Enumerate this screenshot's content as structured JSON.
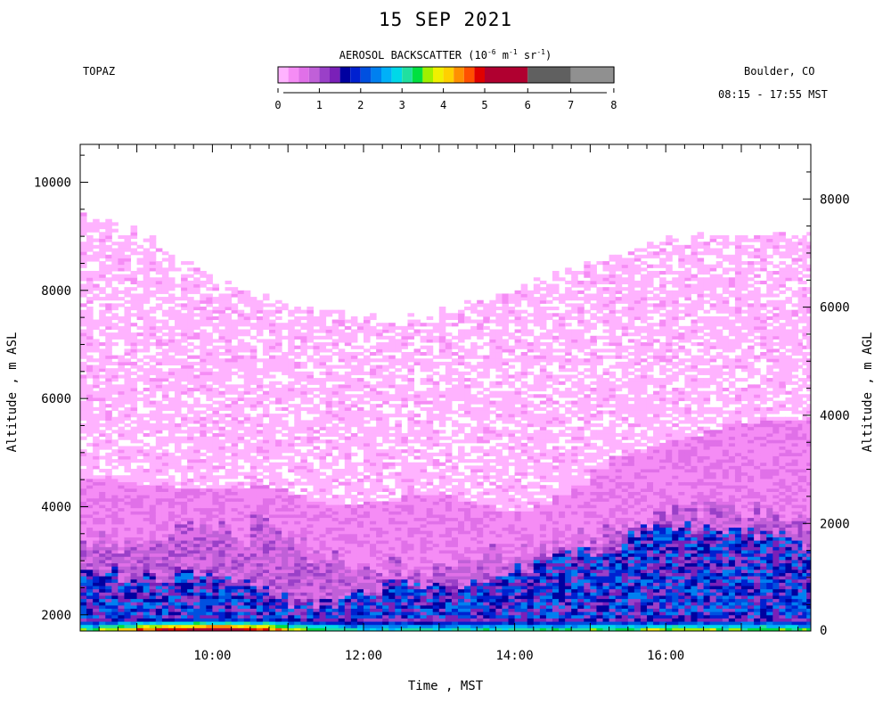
{
  "header": {
    "title": "15 SEP 2021",
    "instrument": "TOPAZ",
    "location": "Boulder, CO",
    "time_range": "08:15 - 17:55 MST"
  },
  "colorbar": {
    "title_prefix": "AEROSOL BACKSCATTER (10",
    "exp1": "-6",
    "mid1": " m",
    "exp2": "-1",
    "mid2": " sr",
    "exp3": "-1",
    "suffix": ")",
    "tick_labels": [
      "0",
      "1",
      "2",
      "3",
      "4",
      "5",
      "6",
      "7",
      "8"
    ],
    "levels": [
      0,
      0.25,
      0.5,
      0.75,
      1.0,
      1.25,
      1.5,
      1.75,
      2.0,
      2.25,
      2.5,
      2.75,
      3.0,
      3.25,
      3.5,
      3.75,
      4.0,
      4.25,
      4.5,
      4.75,
      5,
      6,
      7,
      8
    ],
    "colors": [
      "#ffffff",
      "#ffb3ff",
      "#f58cf5",
      "#e070e8",
      "#c060d8",
      "#9a40c8",
      "#7a20b8",
      "#0000a0",
      "#0020d0",
      "#0050e0",
      "#0080f0",
      "#00b0f8",
      "#00d8e8",
      "#20e0a0",
      "#00e040",
      "#a0f000",
      "#f0f000",
      "#ffd000",
      "#ff9000",
      "#ff5000",
      "#e00000",
      "#b00030",
      "#606060",
      "#909090",
      "#c0c0c0"
    ]
  },
  "chart_data": {
    "type": "heatmap",
    "title": "15 SEP 2021",
    "xlabel": "Time , MST",
    "ylabel": "Altitude , m ASL",
    "ylabel_right": "Altitude , m AGL",
    "x_range": [
      "08:15",
      "17:55"
    ],
    "xlim_hours": [
      8.25,
      17.92
    ],
    "x_tick_labels": [
      "10:00",
      "12:00",
      "14:00",
      "16:00"
    ],
    "x_tick_hours": [
      10,
      12,
      14,
      16
    ],
    "ylim": [
      1700,
      10700
    ],
    "y_tick_values": [
      2000,
      4000,
      6000,
      8000,
      10000
    ],
    "y_tick_labels": [
      "2000",
      "4000",
      "6000",
      "8000",
      "10000"
    ],
    "y_right_tick_values": [
      0,
      2000,
      4000,
      6000,
      8000
    ],
    "y_right_tick_labels": [
      "0",
      "2000",
      "4000",
      "6000",
      "8000"
    ],
    "surface_altitude_asl": 1690,
    "columns": {
      "time_hours": [
        8.25,
        8.5,
        8.75,
        9.0,
        9.25,
        9.5,
        9.75,
        10.0,
        10.25,
        10.5,
        10.75,
        11.0,
        11.25,
        11.5,
        11.75,
        12.0,
        12.25,
        12.5,
        12.75,
        13.0,
        13.25,
        13.5,
        13.75,
        14.0,
        14.25,
        14.5,
        14.75,
        15.0,
        15.25,
        15.5,
        15.75,
        16.0,
        16.25,
        16.5,
        16.75,
        17.0,
        17.25,
        17.5,
        17.75
      ],
      "data_top_m": [
        9400,
        9300,
        9100,
        8900,
        8700,
        8500,
        8300,
        8100,
        8000,
        7900,
        7800,
        7700,
        7600,
        7550,
        7500,
        7450,
        7450,
        7500,
        7500,
        7600,
        7700,
        7800,
        7900,
        8000,
        8150,
        8300,
        8400,
        8550,
        8700,
        8800,
        8850,
        8900,
        8950,
        9000,
        9000,
        9050,
        9050,
        9050,
        9050
      ],
      "faint_layer_top_m": [
        4500,
        4500,
        4450,
        4400,
        4350,
        4300,
        4300,
        4300,
        4300,
        4350,
        4300,
        4200,
        4100,
        4000,
        4000,
        4100,
        4100,
        4200,
        4200,
        4200,
        4100,
        4000,
        3900,
        3900,
        4000,
        4200,
        4400,
        4700,
        4900,
        5000,
        5100,
        5200,
        5300,
        5400,
        5500,
        5500,
        5600,
        5600,
        5600
      ],
      "boundary_layer_top_m": [
        3400,
        3400,
        3300,
        3400,
        3500,
        3500,
        3600,
        3600,
        3400,
        3700,
        3500,
        3300,
        3100,
        3000,
        2900,
        2900,
        2900,
        2800,
        2800,
        3000,
        3200,
        3100,
        3000,
        3100,
        3200,
        3300,
        3400,
        3500,
        3600,
        3700,
        3800,
        3900,
        3950,
        4000,
        4000,
        3900,
        3850,
        3800,
        3700
      ],
      "dense_layer_top_m": [
        2800,
        2800,
        2700,
        2700,
        2700,
        2800,
        2700,
        2600,
        2500,
        2400,
        2300,
        2200,
        2200,
        2200,
        2300,
        2400,
        2500,
        2500,
        2500,
        2500,
        2600,
        2600,
        2600,
        2800,
        3000,
        3200,
        3100,
        3000,
        3200,
        3500,
        3600,
        3600,
        3600,
        3600,
        3500,
        3500,
        3500,
        3400,
        3300
      ],
      "surface_peak_backscatter": [
        2.8,
        3.2,
        3.6,
        4.0,
        4.4,
        4.6,
        4.8,
        4.8,
        4.6,
        4.2,
        3.8,
        3.2,
        2.8,
        2.6,
        2.4,
        2.4,
        2.4,
        2.4,
        2.5,
        2.5,
        2.6,
        2.6,
        2.6,
        2.6,
        2.7,
        2.7,
        2.8,
        2.8,
        2.8,
        2.9,
        3.0,
        3.0,
        3.0,
        3.0,
        2.9,
        2.9,
        2.9,
        2.8,
        2.8
      ]
    }
  }
}
